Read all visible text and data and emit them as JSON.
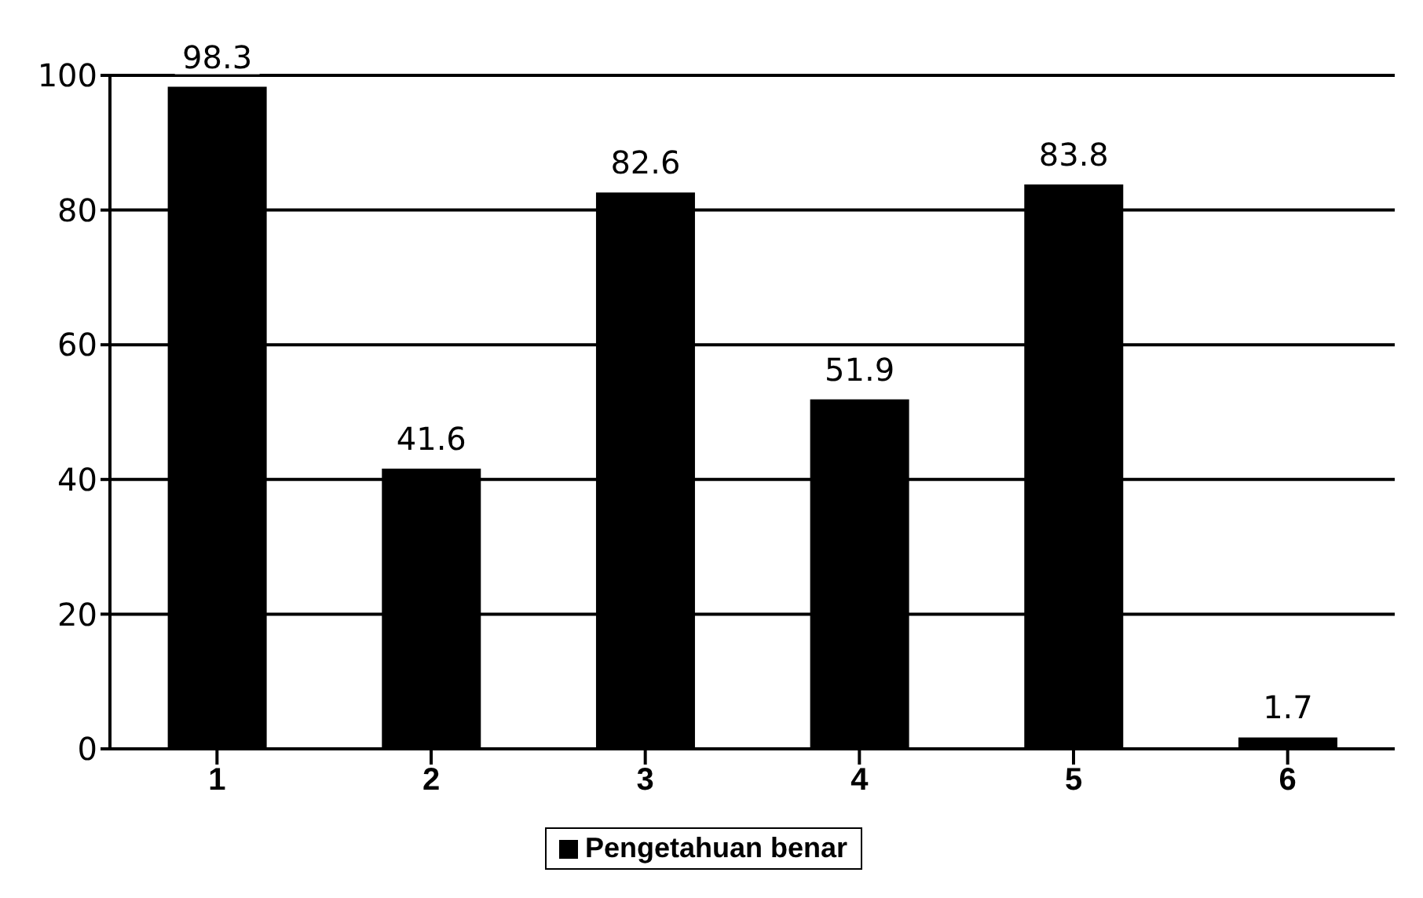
{
  "chart_data": {
    "type": "bar",
    "categories": [
      "1",
      "2",
      "3",
      "4",
      "5",
      "6"
    ],
    "series": [
      {
        "name": "Pengetahuan benar",
        "color": "#000000",
        "values": [
          98.3,
          41.6,
          82.6,
          51.9,
          83.8,
          1.7
        ]
      }
    ],
    "ylim": [
      0,
      100
    ],
    "yticks": [
      0,
      20,
      40,
      60,
      80,
      100
    ],
    "grid": "y",
    "legend": "bottom",
    "data_labels": true
  }
}
